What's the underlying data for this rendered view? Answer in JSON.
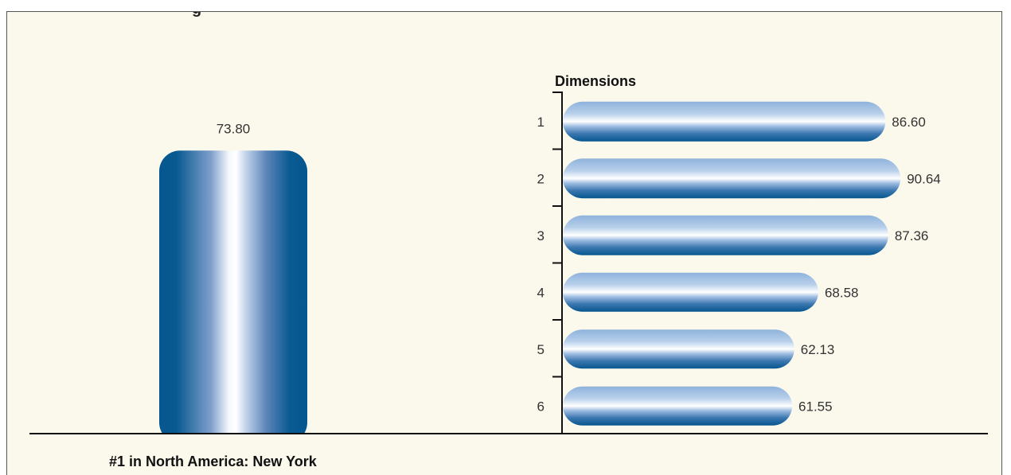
{
  "chart_data": [
    {
      "type": "bar",
      "orientation": "vertical",
      "categories": [
        ""
      ],
      "values": [
        73.8
      ],
      "value_labels": [
        "73.80"
      ],
      "ylim": [
        0,
        100
      ],
      "caption": "#1 in North America: New York",
      "grid": false
    },
    {
      "type": "bar",
      "orientation": "horizontal",
      "title": "Dimensions",
      "categories": [
        "1",
        "2",
        "3",
        "4",
        "5",
        "6"
      ],
      "values": [
        86.6,
        90.64,
        87.36,
        68.58,
        62.13,
        61.55
      ],
      "value_labels": [
        "86.60",
        "90.64",
        "87.36",
        "68.58",
        "62.13",
        "61.55"
      ],
      "xlim": [
        0,
        100
      ],
      "grid": false
    }
  ],
  "colors": {
    "panel_background": "#fbf8ec",
    "bar_dark": "#06568f",
    "bar_light": "#ffffff",
    "bar_mid": "#8fb4dd"
  }
}
